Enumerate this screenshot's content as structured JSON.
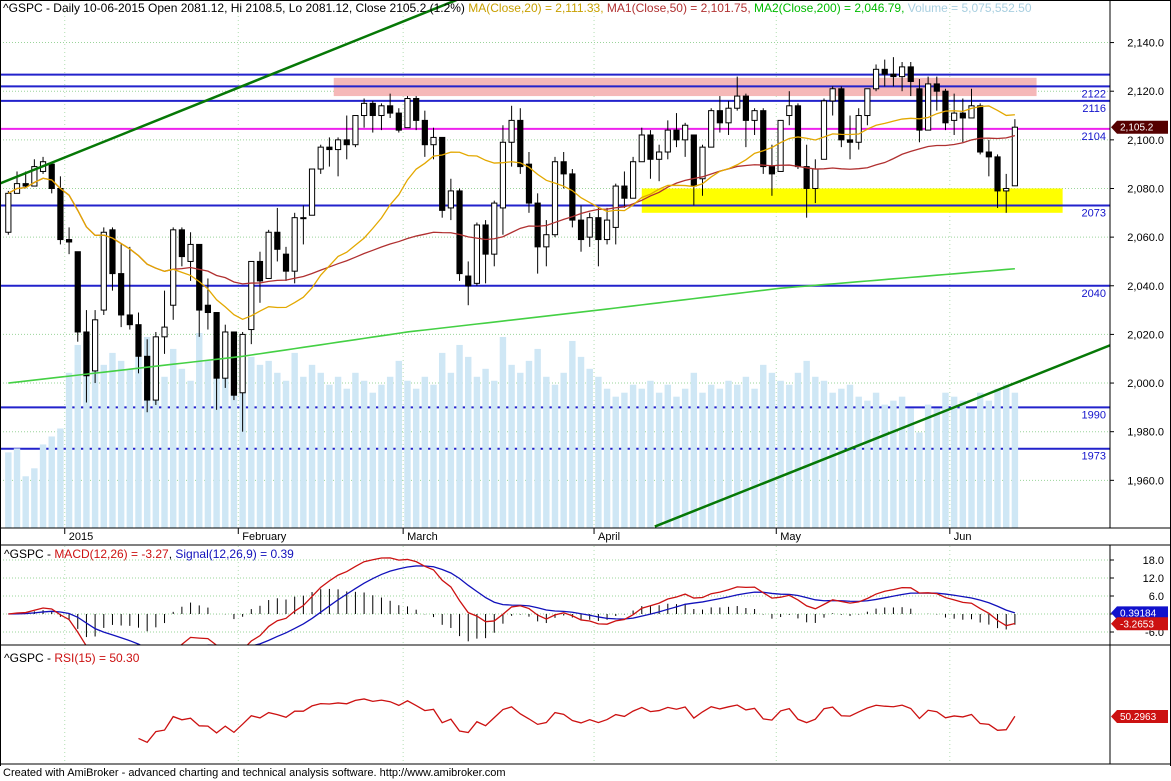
{
  "title_bar": {
    "segments": [
      {
        "text": "^GSPC - Daily 10-06-2015 Open 2081.12, Hi 2108.5, Lo 2081.12, Close 2105.2 (1.2%) ",
        "color": "#000000"
      },
      {
        "text": "MA(Close,20) = 2,111.33, ",
        "color": "#c8a000"
      },
      {
        "text": "MA1(Close,50) = 2,101.75, ",
        "color": "#b03030"
      },
      {
        "text": "MA2(Close,200) = 2,046.79, ",
        "color": "#00bb00"
      },
      {
        "text": "Volume = 5,075,552.50",
        "color": "#a8cfe0"
      }
    ]
  },
  "panels": {
    "macd": {
      "title_segments": [
        {
          "text": "^GSPC - ",
          "color": "#000000"
        },
        {
          "text": "MACD(12,26) = -3.27",
          "color": "#cc1111"
        },
        {
          "text": ", ",
          "color": "#000000"
        },
        {
          "text": "Signal(12,26,9) = 0.39",
          "color": "#1111bb"
        }
      ]
    },
    "rsi": {
      "title_segments": [
        {
          "text": "^GSPC - ",
          "color": "#000000"
        },
        {
          "text": "RSI(15) = 50.30",
          "color": "#cc1111"
        }
      ]
    }
  },
  "footer": {
    "text": "Created with AmiBroker - advanced charting and technical analysis software. ",
    "url": "http://www.amibroker.com"
  },
  "chart_data": [
    {
      "type": "candlestick",
      "symbol": "^GSPC",
      "interval": "Daily",
      "last_date": "10-06-2015",
      "last_ohlc": {
        "open": 2081.12,
        "high": 2108.5,
        "low": 2081.12,
        "close": 2105.2,
        "change_pct": "1.2%"
      },
      "indicator_values": {
        "ma20": "2,111.33",
        "ma50": "2,101.75",
        "ma200": "2,046.79",
        "volume": "5,075,552.50"
      },
      "visible_bars": 127,
      "y_range": [
        1940.4,
        2157.5
      ],
      "y_ticks": [
        {
          "label": "2,140.0",
          "value": 2140
        },
        {
          "label": "2,120.0",
          "value": 2120
        },
        {
          "label": "2,100.0",
          "value": 2100
        },
        {
          "label": "2,080.0",
          "value": 2080
        },
        {
          "label": "2,060.0",
          "value": 2060
        },
        {
          "label": "2,040.0",
          "value": 2040
        },
        {
          "label": "2,020.0",
          "value": 2020
        },
        {
          "label": "2,000.0",
          "value": 2000
        },
        {
          "label": "1,980.0",
          "value": 1980
        },
        {
          "label": "1,960.0",
          "value": 1960
        }
      ],
      "x_ticks": [
        {
          "label": "2015",
          "bar": 7
        },
        {
          "label": "February",
          "bar": 27
        },
        {
          "label": "March",
          "bar": 46
        },
        {
          "label": "April",
          "bar": 68
        },
        {
          "label": "May",
          "bar": 89
        },
        {
          "label": "Jun",
          "bar": 109
        }
      ],
      "ohlc": [
        [
          2062,
          2079,
          2061,
          2078
        ],
        [
          2078,
          2087,
          2078,
          2082
        ],
        [
          2082,
          2087,
          2080,
          2081
        ],
        [
          2081,
          2092,
          2081,
          2089
        ],
        [
          2087,
          2093,
          2086,
          2091
        ],
        [
          2090,
          2091,
          2078,
          2080
        ],
        [
          2080,
          2085,
          2057,
          2059
        ],
        [
          2059,
          2064,
          2053,
          2058
        ],
        [
          2054,
          2054,
          2017,
          2021
        ],
        [
          2021,
          2030,
          1992,
          2003
        ],
        [
          2005,
          2030,
          2000,
          2026
        ],
        [
          2030,
          2064,
          2028,
          2062
        ],
        [
          2063,
          2064,
          2038,
          2045
        ],
        [
          2045,
          2057,
          2023,
          2028
        ],
        [
          2028,
          2056,
          2022,
          2024
        ],
        [
          2024,
          2029,
          2004,
          2011
        ],
        [
          2011,
          2018,
          1988,
          1993
        ],
        [
          1993,
          2021,
          1991,
          2019
        ],
        [
          2019,
          2038,
          2012,
          2023
        ],
        [
          2032,
          2064,
          2026,
          2063
        ],
        [
          2063,
          2064,
          2048,
          2052
        ],
        [
          2050,
          2062,
          2042,
          2057
        ],
        [
          2057,
          2057,
          2019,
          2030
        ],
        [
          2032,
          2043,
          2022,
          2029
        ],
        [
          2029,
          2029,
          1989,
          2002
        ],
        [
          2002,
          2024,
          1998,
          2021
        ],
        [
          2021,
          2021,
          1993,
          1995
        ],
        [
          1996,
          2021,
          1980,
          2020
        ],
        [
          2022,
          2050,
          2016,
          2050
        ],
        [
          2050,
          2054,
          2033,
          2042
        ],
        [
          2043,
          2063,
          2043,
          2062
        ],
        [
          2062,
          2072,
          2050,
          2055
        ],
        [
          2053,
          2056,
          2042,
          2046
        ],
        [
          2046,
          2070,
          2041,
          2068
        ],
        [
          2068,
          2073,
          2057,
          2068
        ],
        [
          2069,
          2088,
          2069,
          2088
        ],
        [
          2088,
          2098,
          2086,
          2097
        ],
        [
          2097,
          2101,
          2089,
          2096
        ],
        [
          2096,
          2101,
          2085,
          2100
        ],
        [
          2100,
          2110,
          2092,
          2098
        ],
        [
          2098,
          2110,
          2097,
          2110
        ],
        [
          2110,
          2117,
          2105,
          2115
        ],
        [
          2115,
          2116,
          2103,
          2110
        ],
        [
          2110,
          2115,
          2104,
          2114
        ],
        [
          2114,
          2119,
          2109,
          2111
        ],
        [
          2111,
          2113,
          2103,
          2104
        ],
        [
          2105,
          2118,
          2105,
          2117
        ],
        [
          2117,
          2118,
          2104,
          2108
        ],
        [
          2108,
          2112,
          2093,
          2098
        ],
        [
          2098,
          2105,
          2092,
          2101
        ],
        [
          2101,
          2101,
          2068,
          2071
        ],
        [
          2072,
          2084,
          2067,
          2079
        ],
        [
          2079,
          2080,
          2042,
          2045
        ],
        [
          2044,
          2050,
          2032,
          2040
        ],
        [
          2041,
          2066,
          2040,
          2065
        ],
        [
          2065,
          2067,
          2041,
          2053
        ],
        [
          2053,
          2075,
          2048,
          2074
        ],
        [
          2072,
          2106,
          2061,
          2099
        ],
        [
          2099,
          2114,
          2089,
          2108
        ],
        [
          2108,
          2113,
          2086,
          2089
        ],
        [
          2090,
          2095,
          2070,
          2074
        ],
        [
          2074,
          2078,
          2045,
          2056
        ],
        [
          2056,
          2067,
          2048,
          2061
        ],
        [
          2061,
          2093,
          2060,
          2091
        ],
        [
          2091,
          2095,
          2080,
          2086
        ],
        [
          2086,
          2088,
          2064,
          2067
        ],
        [
          2067,
          2073,
          2054,
          2059
        ],
        [
          2060,
          2070,
          2056,
          2068
        ],
        [
          2068,
          2072,
          2048,
          2059
        ],
        [
          2059,
          2072,
          2057,
          2067
        ],
        [
          2064,
          2082,
          2057,
          2081
        ],
        [
          2081,
          2087,
          2072,
          2076
        ],
        [
          2076,
          2093,
          2076,
          2091
        ],
        [
          2091,
          2105,
          2091,
          2102
        ],
        [
          2102,
          2104,
          2084,
          2092
        ],
        [
          2092,
          2098,
          2083,
          2095
        ],
        [
          2095,
          2108,
          2092,
          2104
        ],
        [
          2104,
          2111,
          2097,
          2100
        ],
        [
          2100,
          2107,
          2093,
          2106
        ],
        [
          2102,
          2102,
          2073,
          2081
        ],
        [
          2084,
          2098,
          2077,
          2097
        ],
        [
          2097,
          2113,
          2097,
          2112
        ],
        [
          2112,
          2118,
          2103,
          2107
        ],
        [
          2107,
          2116,
          2102,
          2113
        ],
        [
          2113,
          2126,
          2112,
          2118
        ],
        [
          2118,
          2119,
          2097,
          2108
        ],
        [
          2108,
          2113,
          2102,
          2112
        ],
        [
          2112,
          2113,
          2086,
          2089
        ],
        [
          2089,
          2098,
          2077,
          2086
        ],
        [
          2087,
          2108,
          2087,
          2108
        ],
        [
          2110,
          2120,
          2106,
          2114
        ],
        [
          2114,
          2115,
          2088,
          2089
        ],
        [
          2089,
          2098,
          2068,
          2080
        ],
        [
          2080,
          2092,
          2074,
          2088
        ],
        [
          2092,
          2117,
          2092,
          2116
        ],
        [
          2116,
          2122,
          2110,
          2121
        ],
        [
          2121,
          2122,
          2097,
          2100
        ],
        [
          2100,
          2110,
          2092,
          2099
        ],
        [
          2099,
          2113,
          2096,
          2110
        ],
        [
          2110,
          2121,
          2106,
          2121
        ],
        [
          2121,
          2131,
          2120,
          2129
        ],
        [
          2129,
          2133,
          2122,
          2127
        ],
        [
          2127,
          2134,
          2122,
          2126
        ],
        [
          2126,
          2132,
          2120,
          2130
        ],
        [
          2130,
          2132,
          2118,
          2124
        ],
        [
          2121,
          2125,
          2099,
          2104
        ],
        [
          2104,
          2126,
          2104,
          2123
        ],
        [
          2123,
          2126,
          2112,
          2120
        ],
        [
          2120,
          2121,
          2104,
          2107
        ],
        [
          2108,
          2119,
          2102,
          2111
        ],
        [
          2111,
          2117,
          2099,
          2109
        ],
        [
          2109,
          2121,
          2109,
          2114
        ],
        [
          2114,
          2115,
          2094,
          2095
        ],
        [
          2095,
          2100,
          2085,
          2093
        ],
        [
          2093,
          2094,
          2072,
          2079
        ],
        [
          2079,
          2086,
          2070,
          2080
        ],
        [
          2081.1,
          2108.5,
          2081.1,
          2105.2
        ]
      ],
      "volume": [
        1900,
        2000,
        1300,
        1500,
        2100,
        2300,
        2500,
        3900,
        4600,
        4700,
        4300,
        4100,
        4400,
        4200,
        4000,
        4300,
        4800,
        4100,
        3800,
        4500,
        4000,
        3700,
        4900,
        4200,
        4600,
        4000,
        4400,
        4800,
        4300,
        4100,
        4200,
        3900,
        3700,
        4400,
        3800,
        4100,
        3900,
        3600,
        3800,
        3500,
        3900,
        3700,
        3400,
        3600,
        3800,
        4200,
        3700,
        3500,
        3800,
        3600,
        4400,
        3900,
        4600,
        4300,
        3800,
        4000,
        3700,
        4800,
        4100,
        3900,
        4200,
        4500,
        3800,
        3600,
        3900,
        4700,
        4300,
        4000,
        3800,
        3500,
        3300,
        3400,
        3600,
        3500,
        3700,
        3400,
        3600,
        3300,
        3500,
        3900,
        3400,
        3600,
        3500,
        3700,
        3600,
        3800,
        3500,
        4100,
        3900,
        3700,
        3600,
        3900,
        4200,
        3800,
        3700,
        3400,
        3500,
        3600,
        3300,
        3200,
        3400,
        3100,
        3200,
        3300,
        3000,
        2400,
        3100,
        3000,
        3400,
        3300,
        3200,
        3000,
        3400,
        3200,
        3500,
        3600,
        3400
      ],
      "volume_color": "#cfe7f5",
      "overlays": {
        "ma20": {
          "period": 20,
          "color": "#e3a800"
        },
        "ma50": {
          "period": 50,
          "color": "#b03030"
        },
        "ma200": {
          "period": 200,
          "color": "#44d044",
          "points": [
            [
              0,
              2000
            ],
            [
              27,
              2011
            ],
            [
              46,
              2021
            ],
            [
              68,
              2030
            ],
            [
              89,
              2039
            ],
            [
              116,
              2047
            ]
          ]
        }
      },
      "hlines": [
        {
          "value": 2126.8,
          "color": "#2222cc"
        },
        {
          "value": 2122,
          "label": "2122",
          "color": "#2222cc"
        },
        {
          "value": 2116,
          "label": "2116",
          "color": "#2222cc"
        },
        {
          "value": 2104.5,
          "label": "2104",
          "color": "#ee22ee"
        },
        {
          "value": 2073,
          "label": "2073",
          "color": "#2222cc"
        },
        {
          "value": 2040,
          "label": "2040",
          "color": "#2222cc"
        },
        {
          "value": 1990,
          "label": "1990",
          "color": "#2222cc"
        },
        {
          "value": 1973,
          "label": "1973",
          "color": "#2222cc"
        }
      ],
      "bands": [
        {
          "from": 2118,
          "to": 2125.5,
          "bar_from": 38,
          "bar_to": 119,
          "color": "#f5b8b8"
        },
        {
          "from": 2070,
          "to": 2080,
          "bar_from": 73.5,
          "bar_to": 122,
          "color": "#ffff00"
        }
      ],
      "trendlines": [
        {
          "bar1": -1,
          "price1": 2082,
          "bar2": 52,
          "price2": 2158,
          "color": "#067806",
          "width": 2.5
        },
        {
          "bar1": 74.5,
          "price1": 1941,
          "bar2": 128,
          "price2": 2017,
          "color": "#067806",
          "width": 2.5
        }
      ],
      "price_marker": {
        "label": "2,105.2",
        "value": 2105.2,
        "bg": "#550000",
        "fg": "#ffffff"
      }
    },
    {
      "type": "line",
      "name": "MACD",
      "macd_periods": "12,26",
      "signal_periods": "12,26,9",
      "macd_value": -3.27,
      "signal_value": 0.39,
      "macd_color": "#cc1111",
      "signal_color": "#1111bb",
      "histogram_color": "#000000",
      "y_ticks": [
        {
          "label": "18.0",
          "value": 18
        },
        {
          "label": "12.0",
          "value": 12
        },
        {
          "label": "6.0",
          "value": 6
        },
        {
          "label": "0.0",
          "value": 0
        },
        {
          "label": "-6.0",
          "value": -6
        }
      ],
      "badges": [
        {
          "text": "0.39184",
          "value": 0.39184,
          "bg": "#1111cc"
        },
        {
          "text": "-3.2653",
          "value": -3.2653,
          "bg": "#cc1111"
        }
      ]
    },
    {
      "type": "line",
      "name": "RSI",
      "period": 15,
      "value": 50.3,
      "color": "#cc1111",
      "badge": {
        "text": "50.2963",
        "value": 50.2963,
        "bg": "#cc1111"
      },
      "y_display_range": [
        20,
        90
      ]
    }
  ]
}
